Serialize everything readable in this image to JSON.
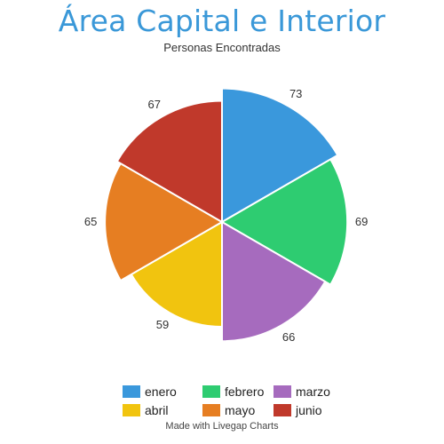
{
  "chart_data": {
    "type": "pie",
    "title": "Área Capital e Interior",
    "subtitle": "Personas Encontradas",
    "categories": [
      "enero",
      "febrero",
      "marzo",
      "abril",
      "mayo",
      "junio"
    ],
    "values": [
      73,
      69,
      66,
      59,
      65,
      67
    ],
    "colors": [
      "#3a98dc",
      "#2ecc71",
      "#a66bbe",
      "#f1c40f",
      "#e67e22",
      "#c0392b"
    ],
    "legend_position": "bottom"
  },
  "credit": "Made with Livegap Charts"
}
